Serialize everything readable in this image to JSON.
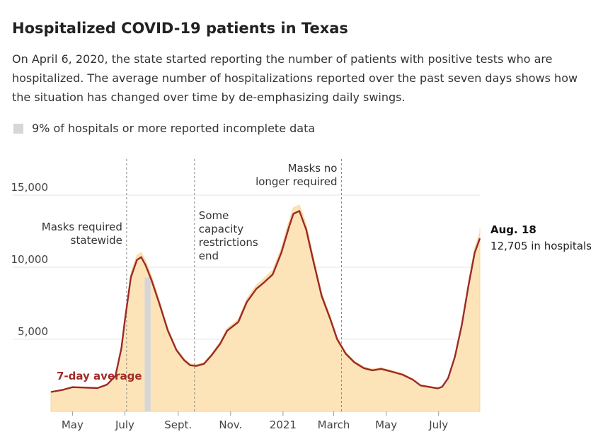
{
  "header": {
    "title": "Hospitalized COVID-19 patients in Texas",
    "subtitle": "On April 6, 2020, the state started reporting the number of patients with positive tests who are hospitalized. The average number of hospitalizations reported over the past seven days shows how the situation has changed over time by de-emphasizing daily swings."
  },
  "legend": {
    "incomplete_label": "9% of hospitals or more reported incomplete data"
  },
  "colors": {
    "area": "#fde4b8",
    "line": "#9b2a27",
    "incomplete": "#d6d6d6",
    "annotation_line": "#888888",
    "series_label": "#a02c28"
  },
  "chart_data": {
    "type": "area",
    "title": "Hospitalized COVID-19 patients in Texas",
    "xlabel": "",
    "ylabel": "",
    "ylim": [
      0,
      17500
    ],
    "xlim": [
      "2020-04-06",
      "2021-08-18"
    ],
    "y_ticks": [
      {
        "value": 5000,
        "label": "5,000"
      },
      {
        "value": 10000,
        "label": "10,000"
      },
      {
        "value": 15000,
        "label": "15,000"
      }
    ],
    "x_ticks": [
      {
        "date": "2020-05-01",
        "label": "May"
      },
      {
        "date": "2020-07-01",
        "label": "July"
      },
      {
        "date": "2020-09-01",
        "label": "Sept."
      },
      {
        "date": "2020-11-01",
        "label": "Nov."
      },
      {
        "date": "2021-01-01",
        "label": "2021"
      },
      {
        "date": "2021-03-01",
        "label": "March"
      },
      {
        "date": "2021-05-01",
        "label": "May"
      },
      {
        "date": "2021-07-01",
        "label": "July"
      }
    ],
    "series": [
      {
        "name": "7-day average",
        "points": [
          [
            "2020-04-06",
            1350
          ],
          [
            "2020-04-20",
            1500
          ],
          [
            "2020-05-01",
            1680
          ],
          [
            "2020-05-15",
            1650
          ],
          [
            "2020-05-30",
            1620
          ],
          [
            "2020-06-10",
            1850
          ],
          [
            "2020-06-20",
            2450
          ],
          [
            "2020-06-27",
            4400
          ],
          [
            "2020-07-01",
            6300
          ],
          [
            "2020-07-08",
            9300
          ],
          [
            "2020-07-15",
            10500
          ],
          [
            "2020-07-20",
            10700
          ],
          [
            "2020-07-25",
            10150
          ],
          [
            "2020-08-01",
            9100
          ],
          [
            "2020-08-10",
            7500
          ],
          [
            "2020-08-20",
            5600
          ],
          [
            "2020-08-30",
            4250
          ],
          [
            "2020-09-08",
            3550
          ],
          [
            "2020-09-15",
            3200
          ],
          [
            "2020-09-22",
            3150
          ],
          [
            "2020-10-01",
            3300
          ],
          [
            "2020-10-10",
            3900
          ],
          [
            "2020-10-20",
            4700
          ],
          [
            "2020-10-28",
            5600
          ],
          [
            "2020-11-10",
            6200
          ],
          [
            "2020-11-20",
            7600
          ],
          [
            "2020-12-01",
            8500
          ],
          [
            "2020-12-10",
            8950
          ],
          [
            "2020-12-20",
            9500
          ],
          [
            "2020-12-30",
            11000
          ],
          [
            "2021-01-08",
            12800
          ],
          [
            "2021-01-13",
            13700
          ],
          [
            "2021-01-20",
            13900
          ],
          [
            "2021-01-28",
            12600
          ],
          [
            "2021-02-05",
            10500
          ],
          [
            "2021-02-15",
            8000
          ],
          [
            "2021-02-25",
            6400
          ],
          [
            "2021-03-05",
            5000
          ],
          [
            "2021-03-15",
            4000
          ],
          [
            "2021-03-25",
            3400
          ],
          [
            "2021-04-05",
            3000
          ],
          [
            "2021-04-15",
            2850
          ],
          [
            "2021-04-25",
            2950
          ],
          [
            "2021-05-05",
            2800
          ],
          [
            "2021-05-20",
            2550
          ],
          [
            "2021-06-01",
            2200
          ],
          [
            "2021-06-10",
            1800
          ],
          [
            "2021-06-20",
            1700
          ],
          [
            "2021-06-30",
            1600
          ],
          [
            "2021-07-05",
            1700
          ],
          [
            "2021-07-12",
            2300
          ],
          [
            "2021-07-20",
            3800
          ],
          [
            "2021-07-28",
            6000
          ],
          [
            "2021-08-05",
            8800
          ],
          [
            "2021-08-12",
            11000
          ],
          [
            "2021-08-18",
            12000
          ]
        ]
      }
    ],
    "daily_peak_last": {
      "date": "2021-08-18",
      "value": 12705
    },
    "incomplete_data_ranges": [
      {
        "start": "2020-07-24",
        "end": "2020-07-31"
      }
    ],
    "annotations": [
      {
        "date": "2020-07-03",
        "lines": [
          "Masks required",
          "statewide"
        ],
        "anchor": "end"
      },
      {
        "date": "2020-09-20",
        "lines": [
          "Some",
          "capacity",
          "restrictions",
          "end"
        ],
        "anchor": "start"
      },
      {
        "date": "2021-03-10",
        "lines": [
          "Masks no",
          "longer required"
        ],
        "anchor": "end"
      }
    ],
    "series_label": "7-day average",
    "callout": {
      "head": "Aug. 18",
      "sub": "12,705 in hospitals"
    }
  }
}
